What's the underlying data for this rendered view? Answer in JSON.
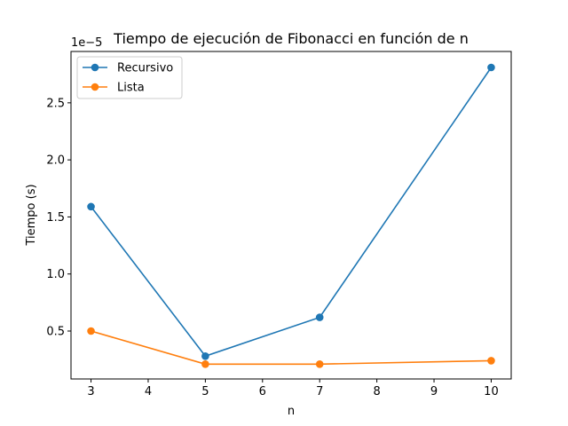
{
  "chart_data": {
    "type": "line",
    "title": "Tiempo de ejecución de Fibonacci en función de n",
    "xlabel": "n",
    "ylabel": "Tiempo (s)",
    "y_offset_label": "1e−5",
    "x": [
      3,
      5,
      7,
      10
    ],
    "xlim": [
      2.65,
      10.35
    ],
    "ylim": [
      8e-07,
      2.95e-05
    ],
    "x_ticks": [
      3,
      4,
      5,
      6,
      7,
      8,
      9,
      10
    ],
    "y_ticks": [
      5e-06,
      1e-05,
      1.5e-05,
      2e-05,
      2.5e-05
    ],
    "y_tick_labels": [
      "0.5",
      "1.0",
      "1.5",
      "2.0",
      "2.5"
    ],
    "grid": false,
    "legend_position": "top-left",
    "series": [
      {
        "name": "Recursivo",
        "color": "#1f77b4",
        "values": [
          1.59e-05,
          2.8e-06,
          6.2e-06,
          2.81e-05
        ]
      },
      {
        "name": "Lista",
        "color": "#ff7f0e",
        "values": [
          5e-06,
          2.1e-06,
          2.1e-06,
          2.4e-06
        ]
      }
    ]
  }
}
